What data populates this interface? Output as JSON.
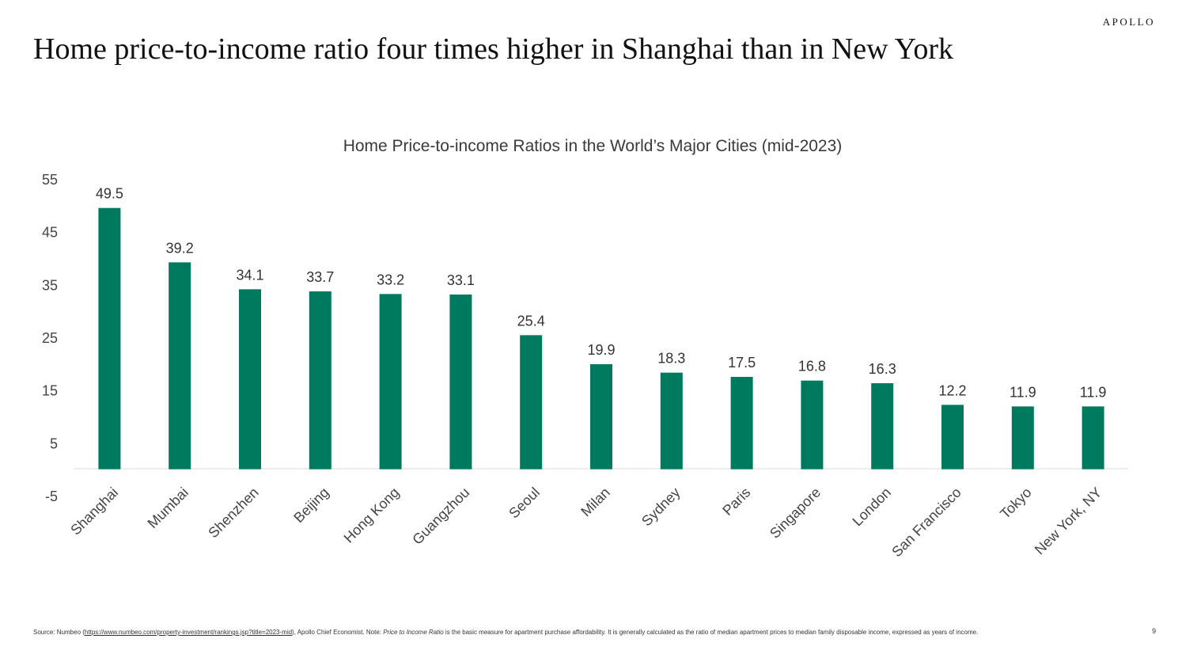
{
  "brand": "APOLLO",
  "headline": "Home price-to-income ratio four times higher in Shanghai than in New York",
  "chart_data": {
    "type": "bar",
    "title": "Home Price-to-income Ratios in the World’s Major Cities (mid-2023)",
    "categories": [
      "Shanghai",
      "Mumbai",
      "Shenzhen",
      "Beijing",
      "Hong Kong",
      "Guangzhou",
      "Seoul",
      "Milan",
      "Sydney",
      "Paris",
      "Singapore",
      "London",
      "San Francisco",
      "Tokyo",
      "New York, NY"
    ],
    "values": [
      49.5,
      39.2,
      34.1,
      33.7,
      33.2,
      33.1,
      25.4,
      19.9,
      18.3,
      17.5,
      16.8,
      16.3,
      12.2,
      11.9,
      11.9
    ],
    "value_labels": [
      "49.5",
      "39.2",
      "34.1",
      "33.7",
      "33.2",
      "33.1",
      "25.4",
      "19.9",
      "18.3",
      "17.5",
      "16.8",
      "16.3",
      "12.2",
      "11.9",
      "11.9"
    ],
    "yticks": [
      55,
      45,
      35,
      25,
      15,
      5,
      -5
    ],
    "ylim": [
      -5,
      55
    ],
    "xlabel": "",
    "ylabel": "",
    "bar_color": "#007a5e",
    "grid": false
  },
  "footnote": {
    "prefix": "Source: Numbeo (",
    "link": "https://www.numbeo.com/property-investment/rankings.jsp?title=2023-mid",
    "middle": "), Apollo Chief Economist. Note: ",
    "italic": "Price to Income Ratio",
    "suffix": " is the basic measure for apartment purchase affordability. It is generally calculated as the ratio of median apartment prices to median family disposable income, expressed as years of income."
  },
  "page_number": "9"
}
